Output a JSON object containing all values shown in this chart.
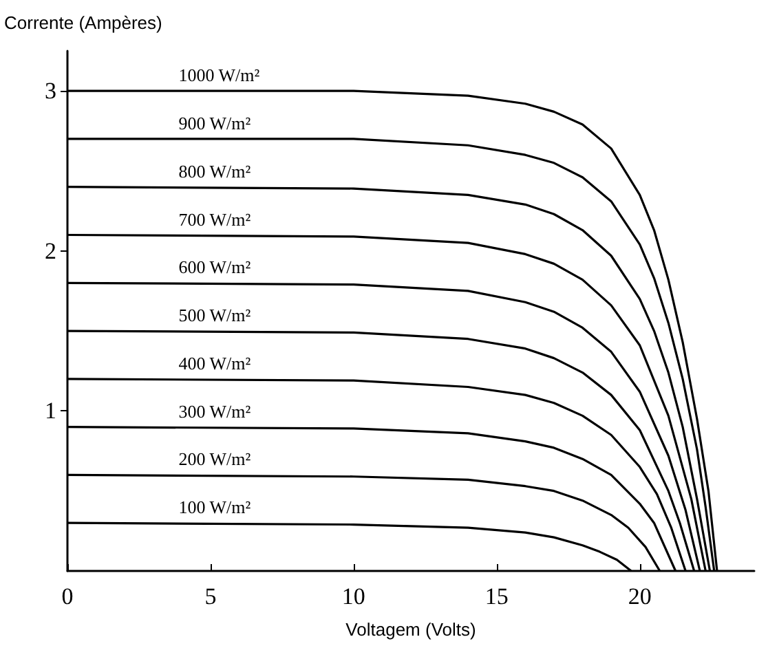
{
  "chart_data": {
    "type": "line",
    "xlabel": "Voltagem (Volts)",
    "ylabel": "Corrente (Ampères)",
    "xlim": [
      0,
      24
    ],
    "xticks": [
      0,
      5,
      10,
      15,
      20
    ],
    "ylim": [
      0,
      3.25
    ],
    "yticks": [
      1,
      2,
      3
    ],
    "marker": "none",
    "line_style": "solid",
    "series": [
      {
        "name": "1000 W/m²",
        "color": "#000000",
        "x": [
          0,
          10,
          14,
          16,
          17,
          18,
          19,
          20,
          20.5,
          21,
          21.5,
          22,
          22.4,
          22.7
        ],
        "values": [
          3.0,
          3.0,
          2.97,
          2.92,
          2.87,
          2.79,
          2.64,
          2.35,
          2.13,
          1.82,
          1.43,
          0.95,
          0.5,
          0
        ]
      },
      {
        "name": "900 W/m²",
        "color": "#000000",
        "x": [
          0,
          10,
          14,
          16,
          17,
          18,
          19,
          20,
          20.5,
          21,
          21.5,
          22,
          22.3,
          22.6
        ],
        "values": [
          2.7,
          2.7,
          2.66,
          2.6,
          2.55,
          2.46,
          2.31,
          2.04,
          1.83,
          1.55,
          1.2,
          0.76,
          0.4,
          0
        ]
      },
      {
        "name": "800 W/m²",
        "color": "#000000",
        "x": [
          0,
          10,
          14,
          16,
          17,
          18,
          19,
          20,
          20.5,
          21,
          21.5,
          22,
          22.45
        ],
        "values": [
          2.4,
          2.39,
          2.35,
          2.29,
          2.23,
          2.13,
          1.97,
          1.7,
          1.5,
          1.24,
          0.9,
          0.45,
          0
        ]
      },
      {
        "name": "700 W/m²",
        "color": "#000000",
        "x": [
          0,
          10,
          14,
          16,
          17,
          18,
          19,
          20,
          21,
          21.8,
          22.3
        ],
        "values": [
          2.1,
          2.09,
          2.05,
          1.98,
          1.92,
          1.82,
          1.66,
          1.41,
          0.97,
          0.45,
          0
        ]
      },
      {
        "name": "600 W/m²",
        "color": "#000000",
        "x": [
          0,
          10,
          14,
          16,
          17,
          18,
          19,
          20,
          21,
          21.6,
          22.1
        ],
        "values": [
          1.8,
          1.79,
          1.75,
          1.68,
          1.62,
          1.52,
          1.37,
          1.12,
          0.72,
          0.38,
          0
        ]
      },
      {
        "name": "500 W/m²",
        "color": "#000000",
        "x": [
          0,
          10,
          14,
          16,
          17,
          18,
          19,
          20,
          21,
          21.4,
          21.9
        ],
        "values": [
          1.5,
          1.49,
          1.45,
          1.39,
          1.33,
          1.24,
          1.1,
          0.88,
          0.5,
          0.3,
          0
        ]
      },
      {
        "name": "400 W/m²",
        "color": "#000000",
        "x": [
          0,
          10,
          14,
          16,
          17,
          18,
          19,
          20,
          20.6,
          21.1,
          21.6
        ],
        "values": [
          1.2,
          1.19,
          1.15,
          1.1,
          1.05,
          0.97,
          0.85,
          0.65,
          0.48,
          0.27,
          0
        ]
      },
      {
        "name": "300 W/m²",
        "color": "#000000",
        "x": [
          0,
          10,
          14,
          16,
          17,
          18,
          19,
          20,
          20.5,
          21.25
        ],
        "values": [
          0.9,
          0.89,
          0.86,
          0.81,
          0.77,
          0.7,
          0.6,
          0.42,
          0.3,
          0
        ]
      },
      {
        "name": "200 W/m²",
        "color": "#000000",
        "x": [
          0,
          10,
          14,
          16,
          17,
          18,
          19,
          19.6,
          20.2,
          20.7
        ],
        "values": [
          0.6,
          0.59,
          0.57,
          0.53,
          0.5,
          0.44,
          0.35,
          0.27,
          0.15,
          0
        ]
      },
      {
        "name": "100 W/m²",
        "color": "#000000",
        "x": [
          0,
          10,
          14,
          16,
          17,
          18,
          18.6,
          19.2,
          19.7
        ],
        "values": [
          0.3,
          0.29,
          0.27,
          0.24,
          0.21,
          0.16,
          0.12,
          0.07,
          0
        ]
      }
    ]
  }
}
